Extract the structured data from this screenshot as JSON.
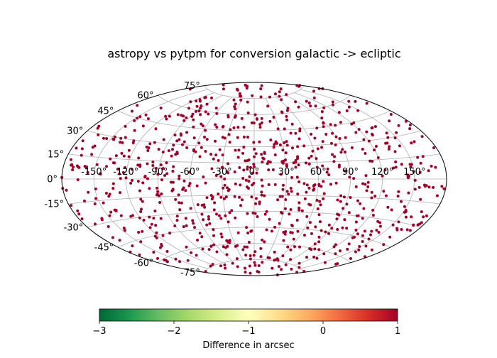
{
  "chart_data": {
    "type": "scatter",
    "projection": "aitoff",
    "title": "astropy vs pytpm for conversion galactic -> ecliptic",
    "grid": true,
    "x_tick_labels": [
      "-150°",
      "-120°",
      "-90°",
      "-60°",
      "-30°",
      "0°",
      "30°",
      "60°",
      "90°",
      "120°",
      "150°"
    ],
    "y_tick_labels": [
      "-75°",
      "-60°",
      "-45°",
      "-30°",
      "-15°",
      "0°",
      "15°",
      "30°",
      "45°",
      "60°",
      "75°"
    ],
    "xlim": [
      -180,
      180
    ],
    "ylim": [
      -90,
      90
    ],
    "point_color": "#a50026",
    "point_count": 900,
    "point_value": 1,
    "colorbar": {
      "label": "Difference in arcsec",
      "range": [
        -3,
        1
      ],
      "ticks": [
        -3,
        -2,
        -1,
        0,
        1
      ],
      "tick_labels": [
        "−3",
        "−2",
        "−1",
        "0",
        "1"
      ],
      "colormap": "RdYlGn_r",
      "stops": [
        "#006837",
        "#1a9850",
        "#66bd63",
        "#a6d96a",
        "#d9ef8b",
        "#ffffbf",
        "#fee08b",
        "#fdae61",
        "#f46d43",
        "#d73027",
        "#a50026"
      ]
    }
  }
}
